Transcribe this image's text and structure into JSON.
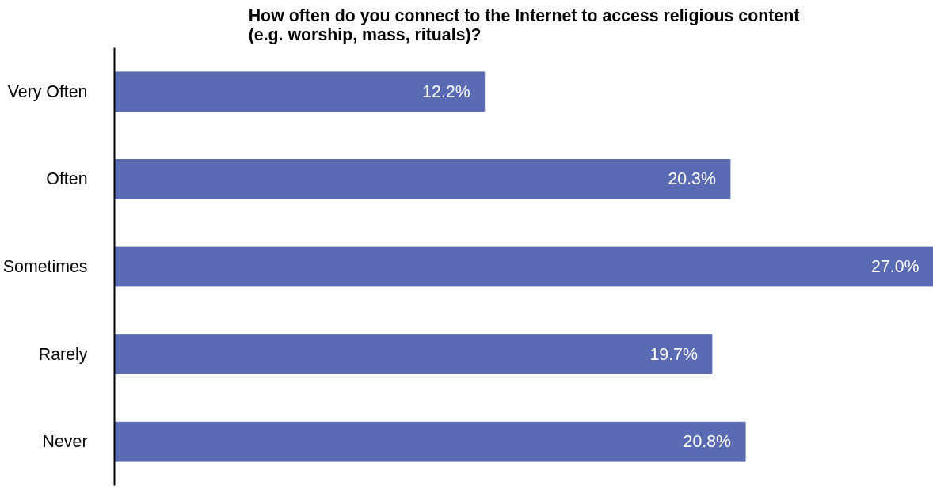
{
  "chart_data": {
    "type": "bar",
    "orientation": "horizontal",
    "title": "How often do you connect to the Internet to access religious content\n(e.g. worship, mass, rituals)?",
    "categories": [
      "Very Often",
      "Often",
      "Sometimes",
      "Rarely",
      "Never"
    ],
    "values": [
      12.2,
      20.3,
      27.0,
      19.7,
      20.8
    ],
    "value_labels": [
      "12.2%",
      "20.3%",
      "27.0%",
      "19.7%",
      "20.8%"
    ],
    "color": "#5a6bb3",
    "grid": false
  }
}
